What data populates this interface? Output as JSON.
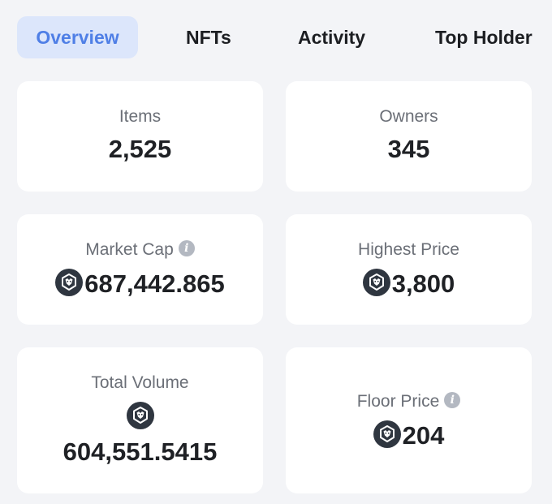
{
  "tabs": [
    {
      "label": "Overview",
      "active": true
    },
    {
      "label": "NFTs",
      "active": false
    },
    {
      "label": "Activity",
      "active": false
    },
    {
      "label": "Top Holder",
      "active": false
    }
  ],
  "colors": {
    "page_bg": "#f3f4f7",
    "card_bg": "#ffffff",
    "accent": "#4f7fe6",
    "active_tab_bg": "#dce6fb",
    "coin_bg": "#2f3640",
    "info_icon": "#b3b8c1"
  },
  "stats": {
    "items": {
      "label": "Items",
      "value": "2,525"
    },
    "owners": {
      "label": "Owners",
      "value": "345"
    },
    "market_cap": {
      "label": "Market Cap",
      "value": "687,442.865",
      "icon": "cronos-coin-icon",
      "has_info": true
    },
    "highest_price": {
      "label": "Highest Price",
      "value": "3,800",
      "icon": "cronos-coin-icon"
    },
    "total_volume": {
      "label": "Total Volume",
      "value": "604,551.5415",
      "icon": "cronos-coin-icon"
    },
    "floor_price": {
      "label": "Floor Price",
      "value": "204",
      "icon": "cronos-coin-icon",
      "has_info": true
    }
  },
  "info_glyph": "i"
}
